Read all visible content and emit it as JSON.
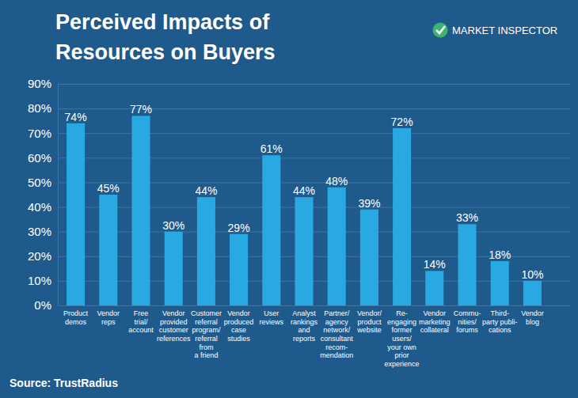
{
  "chart_data": {
    "type": "bar",
    "title": "Perceived Impacts of\nResources on Buyers",
    "categories": [
      "Product\ndemos",
      "Vendor\nreps",
      "Free\ntrial/\naccount",
      "Vendor\nprovided\ncustomer\nreferences",
      "Customer\nreferral\nprogram/\nreferral\nfrom\na friend",
      "Vendor\nproduced\ncase\nstudies",
      "User\nreviews",
      "Analyst\nrankings\nand\nreports",
      "Partner/\nagency\nnetwork/\nconsultant\nrecom-\nmendation",
      "Vendor/\nproduct\nwebsite",
      "Re-\nengaging\nformer\nusers/\nyour own\nprior\nexperience",
      "Vendor\nmarketing\ncollateral",
      "Commu-\nnities/\nforums",
      "Third-\nparty publi-\ncations",
      "Vendor\nblog"
    ],
    "values": [
      74,
      45,
      77,
      30,
      44,
      29,
      61,
      44,
      48,
      39,
      72,
      14,
      33,
      18,
      10
    ],
    "value_labels": [
      "74%",
      "45%",
      "77%",
      "30%",
      "44%",
      "29%",
      "61%",
      "44%",
      "48%",
      "39%",
      "72%",
      "14%",
      "33%",
      "18%",
      "10%"
    ],
    "color": "#29a9e1",
    "ylim": [
      0,
      90
    ],
    "yticks": [
      {
        "value": 0,
        "label": "0%"
      },
      {
        "value": 10,
        "label": "10%"
      },
      {
        "value": 20,
        "label": "20%"
      },
      {
        "value": 30,
        "label": "30%"
      },
      {
        "value": 40,
        "label": "40%"
      },
      {
        "value": 50,
        "label": "50%"
      },
      {
        "value": 60,
        "label": "60%"
      },
      {
        "value": 70,
        "label": "70%"
      },
      {
        "value": 80,
        "label": "80%"
      },
      {
        "value": 90,
        "label": "90%"
      }
    ],
    "grid": true,
    "data_labels": true,
    "annotations": [
      "MARKET INSPECTOR",
      "Source: TrustRadius"
    ]
  }
}
